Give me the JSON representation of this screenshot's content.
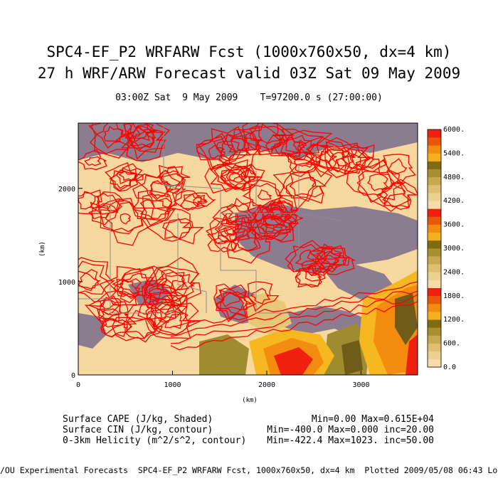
{
  "titles": {
    "line1": "SPC4-EF_P2 WRFARW Fcst (1000x760x50, dx=4 km)",
    "line2": "27 h WRF/ARW Forecast valid 03Z Sat 09 May 2009",
    "subtitle": "03:00Z Sat  9 May 2009    T=97200.0 s (27:00:00)"
  },
  "colors": {
    "cape_low": "#f7d9a0",
    "cape_tan": "#e8c878",
    "cape_olive": "#a08c30",
    "cape_dark_olive": "#6e5c18",
    "cape_yellow": "#f6b820",
    "cape_orange": "#f48c10",
    "cape_red": "#f02010",
    "cin_gray": "#8c7c90",
    "helicity_red": "#ff0000",
    "border_gray": "#8c8c8c"
  },
  "chart_data": {
    "type": "map",
    "xlabel": "(km)",
    "ylabel": "(km)",
    "xlim": [
      0,
      3600
    ],
    "ylim": [
      0,
      2700
    ],
    "x_ticks": [
      "0",
      "1000",
      "2000",
      "3000"
    ],
    "x_tick_values": [
      0,
      1000,
      2000,
      3000
    ],
    "y_ticks": [
      "0",
      "1000",
      "2000"
    ],
    "y_tick_values": [
      0,
      1000,
      2000
    ],
    "colorbar_labels": [
      "0.0",
      "600.",
      "1200.",
      "1800.",
      "2400.",
      "3000.",
      "3600.",
      "4200.",
      "4800.",
      "5400.",
      "6000."
    ],
    "colorbar_colors": [
      "#f8dca8",
      "#ecd090",
      "#e0c070",
      "#c8a850",
      "#a89030",
      "#806c10",
      "#f4b020",
      "#f08c10",
      "#e85808",
      "#f02010",
      "#f8dca8",
      "#ecd090",
      "#e0c070",
      "#c8a850",
      "#a89030",
      "#806c10",
      "#f4b020",
      "#f08c10",
      "#e85808",
      "#f02010",
      "#f8dca8",
      "#ecd090",
      "#e0c070",
      "#c8a850",
      "#a89030",
      "#806c10",
      "#f4b020",
      "#f08c10",
      "#e85808",
      "#f02010"
    ],
    "fields": [
      {
        "name": "Surface CAPE (J/kg, Shaded)",
        "stats": "Min=0.00 Max=0.615E+04"
      },
      {
        "name": "Surface CIN (J/kg, contour)",
        "stats": "Min=-400.0 Max=0.000 inc=20.00"
      },
      {
        "name": "0-3km Helicity (m^2/s^2, contour)",
        "stats": "Min=-422.4 Max=1023. inc=50.00"
      }
    ]
  },
  "footer": "/OU Experimental Forecasts  SPC4-EF_P2 WRFARW Fcst, 1000x760x50, dx=4 km  Plotted 2009/05/08 06:43 Local"
}
